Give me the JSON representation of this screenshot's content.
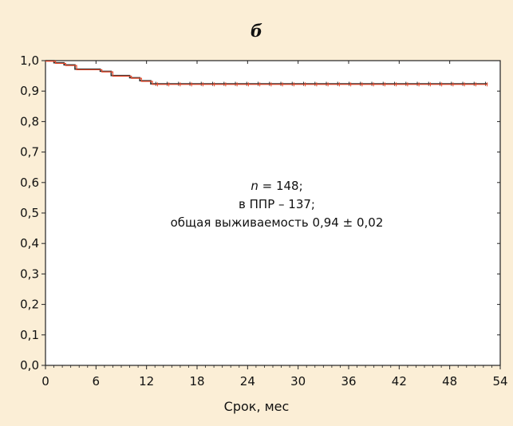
{
  "chart_data": {
    "type": "line",
    "title": "б",
    "xlabel": "Срок, мес",
    "ylabel": "",
    "xlim": [
      0,
      54
    ],
    "ylim": [
      0.0,
      1.0
    ],
    "x_ticks": [
      0,
      6,
      12,
      18,
      24,
      30,
      36,
      42,
      48,
      54
    ],
    "x_tick_labels": [
      "0",
      "6",
      "12",
      "18",
      "24",
      "30",
      "36",
      "42",
      "48",
      "54"
    ],
    "y_ticks": [
      0.0,
      0.1,
      0.2,
      0.3,
      0.4,
      0.5,
      0.6,
      0.7,
      0.8,
      0.9,
      1.0
    ],
    "y_tick_labels": [
      "0,0",
      "0,1",
      "0,2",
      "0,3",
      "0,4",
      "0,5",
      "0,6",
      "0,7",
      "0,8",
      "0,9",
      "1,0"
    ],
    "grid": false,
    "series": [
      {
        "step": [
          [
            0,
            1.0
          ],
          [
            1,
            0.993
          ],
          [
            2.2,
            0.986
          ],
          [
            3.5,
            0.972
          ],
          [
            6.5,
            0.965
          ],
          [
            7.8,
            0.951
          ],
          [
            10,
            0.944
          ],
          [
            11.2,
            0.934
          ],
          [
            12.5,
            0.924
          ],
          [
            52.5,
            0.924
          ]
        ],
        "color": "#333333"
      },
      {
        "step": [
          [
            0,
            0.998
          ],
          [
            1.2,
            0.991
          ],
          [
            2.4,
            0.984
          ],
          [
            3.7,
            0.97
          ],
          [
            6.7,
            0.963
          ],
          [
            8,
            0.949
          ],
          [
            10.2,
            0.942
          ],
          [
            11.4,
            0.932
          ],
          [
            12.7,
            0.922
          ],
          [
            52.5,
            0.922
          ]
        ],
        "color": "#e8482a"
      }
    ],
    "annotation": {
      "line1_var": "n",
      "line1_rest": " = 148;",
      "line2": "в ППР – 137;",
      "line3": "общая выживаемость 0,94 ± 0,02"
    }
  }
}
